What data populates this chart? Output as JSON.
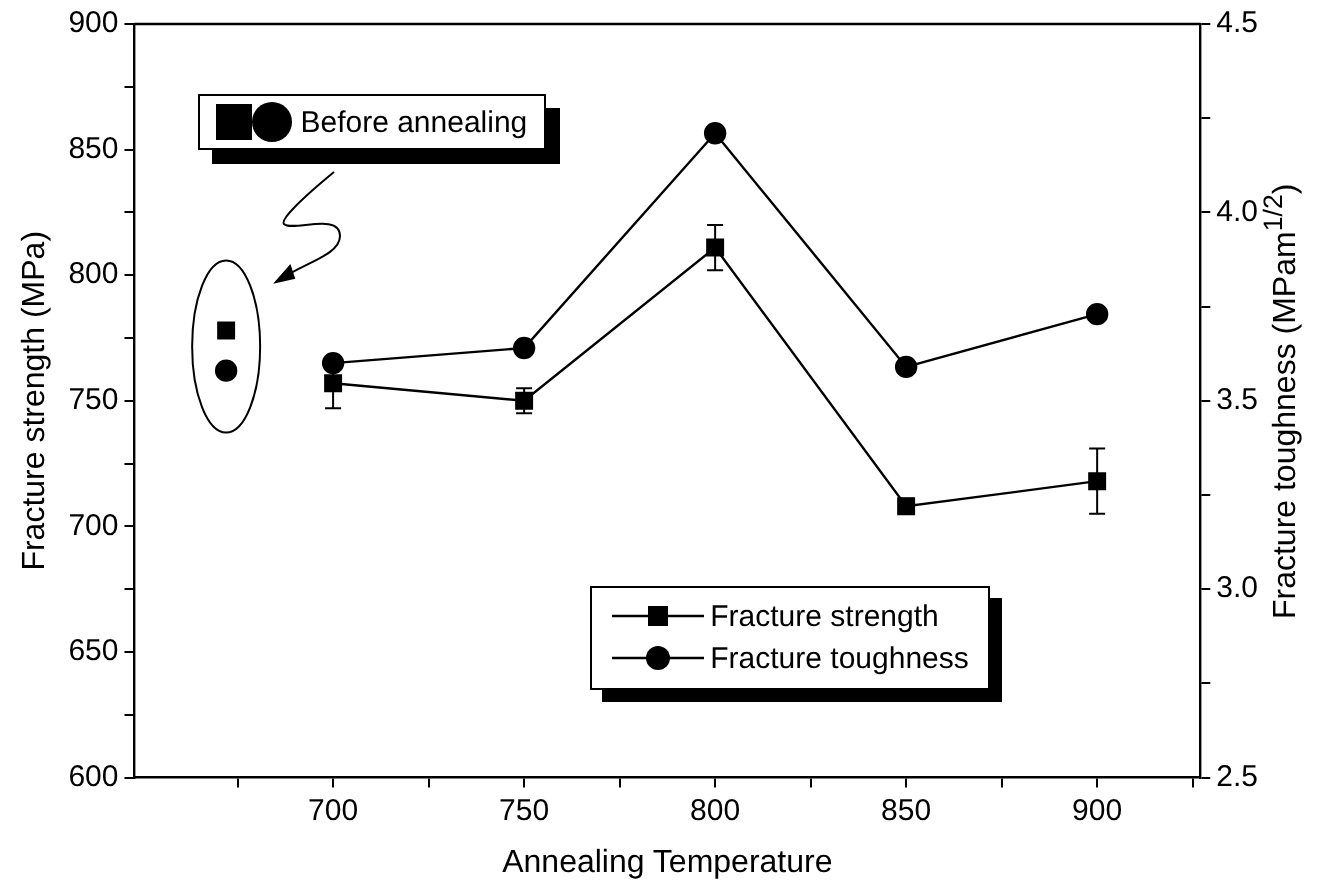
{
  "chart_data": {
    "type": "line",
    "xlabel": "Annealing Temperature",
    "ylabel": "Fracture strength (MPa)",
    "y2label": "Fracture toughness (MPam$^{1/2}$)",
    "x": [
      700,
      750,
      800,
      850,
      900
    ],
    "series": [
      {
        "name": "Fracture strength",
        "color": "#000000",
        "marker": "square",
        "values": [
          757,
          750,
          811,
          708,
          718
        ],
        "errors": [
          10,
          5,
          9,
          3,
          13
        ]
      },
      {
        "name": "Fracture toughness",
        "color": "#000000",
        "marker": "circle",
        "axis": "y2",
        "values": [
          3.6,
          3.64,
          4.21,
          3.59,
          3.73
        ]
      },
      {
        "type": "scatter",
        "color": "#000000",
        "marker": "square",
        "x": [
          672
        ],
        "values": [
          778
        ]
      },
      {
        "type": "scatter",
        "color": "#000000",
        "marker": "circle",
        "axis": "y2",
        "x": [
          672
        ],
        "values": [
          3.58
        ]
      }
    ],
    "xlim": [
      648,
      927
    ],
    "xticks": [
      {
        "value": 675,
        "label": null
      },
      700,
      {
        "value": 725,
        "label": null
      },
      750,
      {
        "value": 775,
        "label": null
      },
      800,
      {
        "value": 825,
        "label": null
      },
      850,
      {
        "value": 875,
        "label": null
      },
      900,
      {
        "value": 925,
        "label": null
      }
    ],
    "ylim": [
      600,
      900
    ],
    "yticks": [
      600,
      {
        "value": 625,
        "label": null
      },
      650,
      {
        "value": 675,
        "label": null
      },
      700,
      {
        "value": 725,
        "label": null
      },
      750,
      {
        "value": 775,
        "label": null
      },
      800,
      {
        "value": 825,
        "label": null
      },
      850,
      {
        "value": 875,
        "label": null
      },
      900
    ],
    "y2lim": [
      2.5,
      4.5
    ],
    "y2ticks": [
      2.5,
      {
        "value": 2.75,
        "label": null
      },
      {
        "value": 3,
        "label": "3.0"
      },
      {
        "value": 3.25,
        "label": null
      },
      3.5,
      {
        "value": 3.75,
        "label": null
      },
      {
        "value": 4,
        "label": "4.0"
      },
      {
        "value": 4.25,
        "label": null
      },
      4.5
    ],
    "annotations": [
      "Before annealing"
    ],
    "grid": false,
    "legend": "bottom right",
    "line_style": "solid"
  }
}
